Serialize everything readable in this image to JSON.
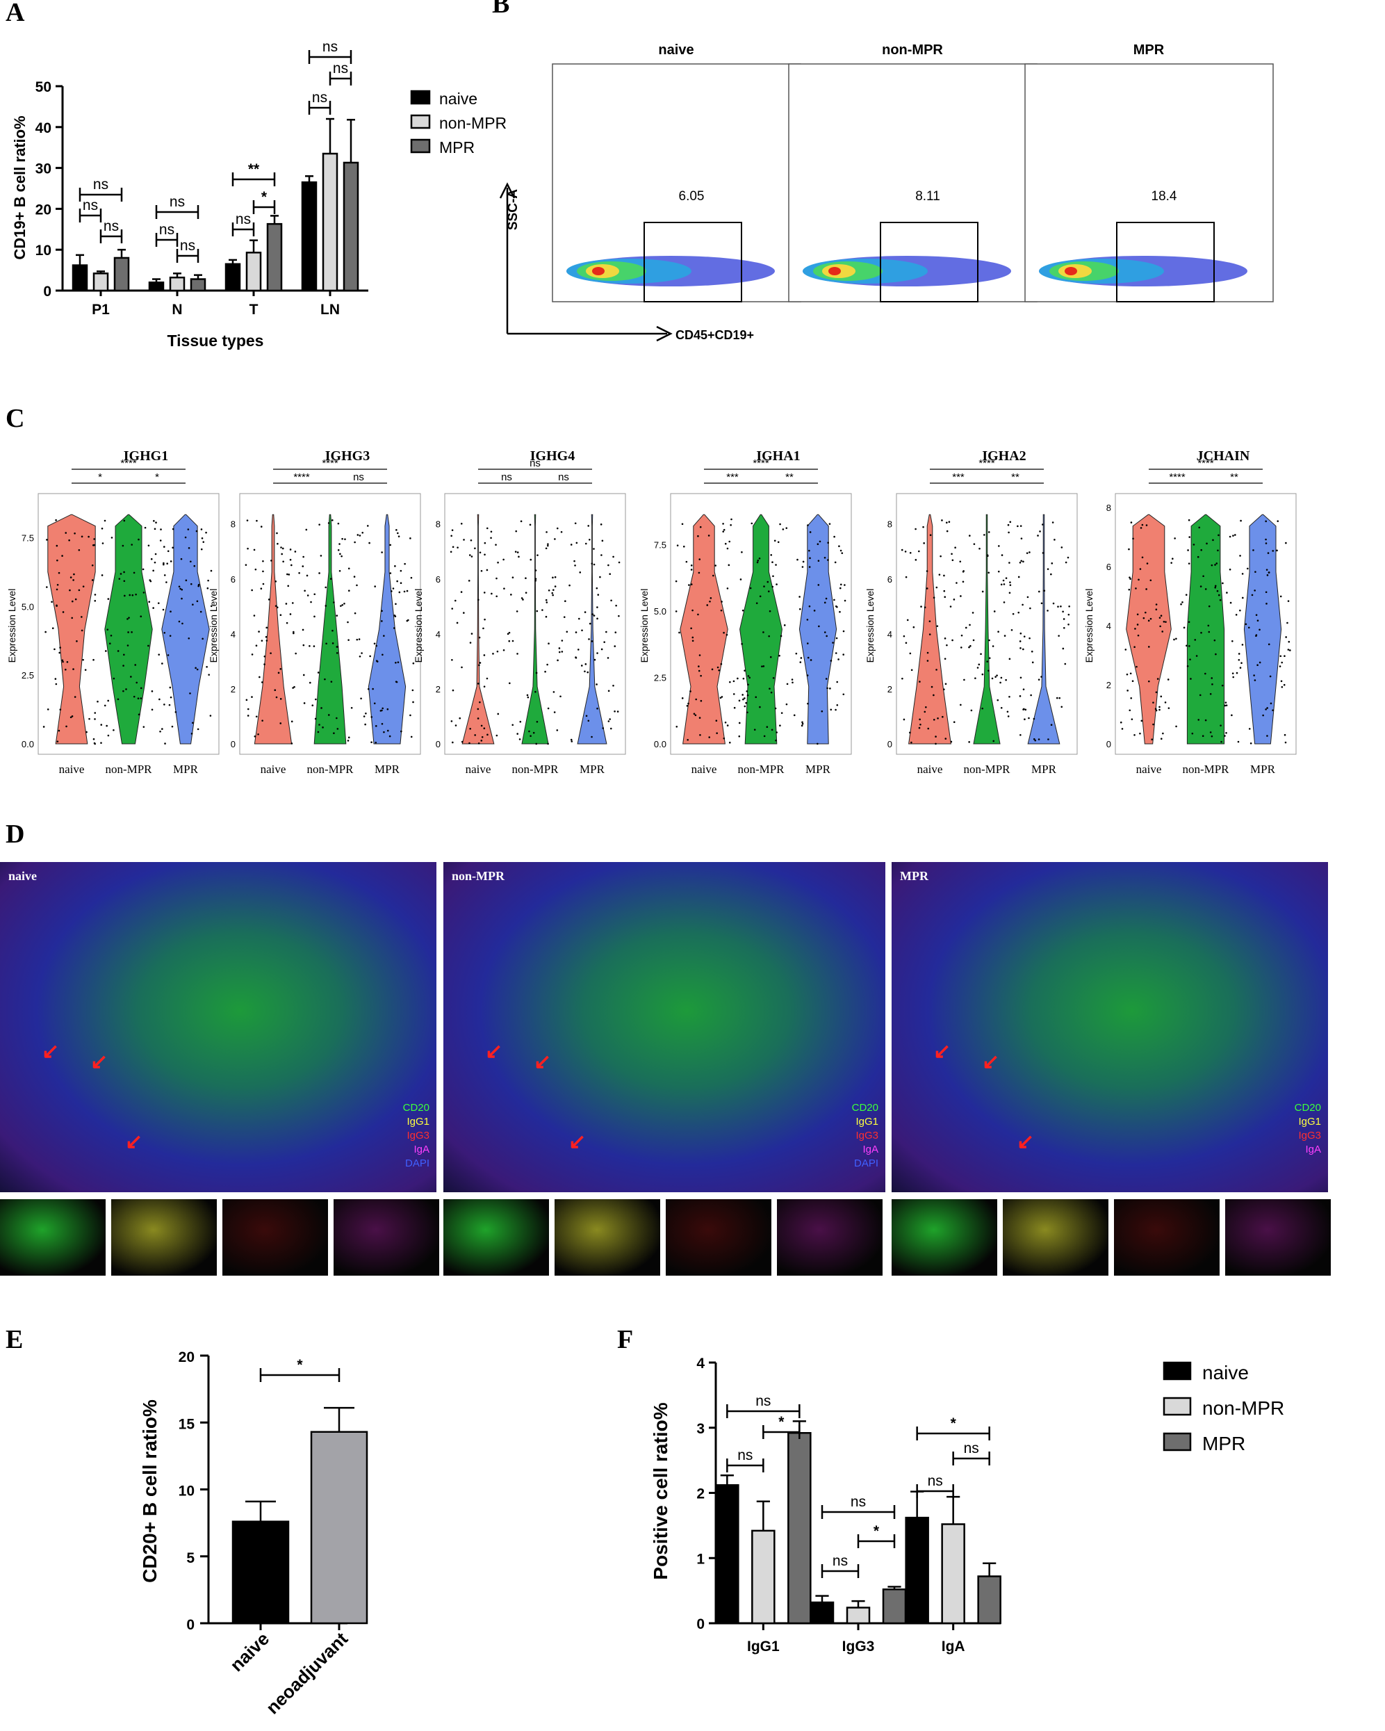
{
  "panels": {
    "A": "A",
    "B": "B",
    "C": "C",
    "D": "D",
    "E": "E",
    "F": "F"
  },
  "colors": {
    "naive": "#000000",
    "nonmpr": "#d9d9d9",
    "mpr": "#6e6e6e",
    "mpr_e": "#a3a3a8",
    "violin_naive": "#f08070",
    "violin_nonmpr": "#1faa3c",
    "violin_mpr": "#6c90ea"
  },
  "chart_data": [
    {
      "id": "A",
      "type": "bar",
      "ylabel": "CD19+ B cell ratio%",
      "xlabel": "Tissue types",
      "ylim": [
        0,
        50
      ],
      "yticks": [
        0,
        10,
        20,
        30,
        40,
        50
      ],
      "categories": [
        "P1",
        "N",
        "T",
        "LN"
      ],
      "series": [
        {
          "name": "naive",
          "values": [
            6.2,
            2.0,
            6.5,
            26.5
          ],
          "err": [
            2.5,
            0.8,
            1.0,
            1.5
          ]
        },
        {
          "name": "non-MPR",
          "values": [
            4.2,
            3.2,
            9.3,
            33.5
          ],
          "err": [
            0.5,
            1.0,
            3.0,
            8.5
          ]
        },
        {
          "name": "MPR",
          "values": [
            8.0,
            2.8,
            16.3,
            31.3
          ],
          "err": [
            2.0,
            1.0,
            2.0,
            10.5
          ]
        }
      ],
      "legend": [
        "naive",
        "non-MPR",
        "MPR"
      ],
      "annotations": [
        "ns",
        "ns",
        "ns",
        "ns",
        "ns",
        "ns",
        "**",
        "ns",
        "*",
        "ns",
        "ns",
        "ns"
      ]
    },
    {
      "id": "C",
      "type": "violin",
      "ylabel": "Expression Level",
      "groups": [
        "naive",
        "non-MPR",
        "MPR"
      ],
      "genes": [
        {
          "gene": "IGHG1",
          "yticks": [
            "0.0",
            "2.5",
            "5.0",
            "7.5"
          ],
          "ymax": 8.6,
          "tickvals": [
            0,
            2.5,
            5,
            7.5
          ],
          "sig": [
            "*",
            "*",
            "****"
          ]
        },
        {
          "gene": "IGHG3",
          "yticks": [
            "0",
            "2",
            "4",
            "6",
            "8"
          ],
          "ymax": 8.6,
          "tickvals": [
            0,
            2,
            4,
            6,
            8
          ],
          "sig": [
            "****",
            "ns",
            "****"
          ]
        },
        {
          "gene": "IGHG4",
          "yticks": [
            "0",
            "2",
            "4",
            "6",
            "8"
          ],
          "ymax": 8.6,
          "tickvals": [
            0,
            2,
            4,
            6,
            8
          ],
          "sig": [
            "ns",
            "ns",
            "ns"
          ]
        },
        {
          "gene": "IGHA1",
          "yticks": [
            "0.0",
            "2.5",
            "5.0",
            "7.5"
          ],
          "ymax": 8.9,
          "tickvals": [
            0,
            2.5,
            5,
            7.5
          ],
          "sig": [
            "***",
            "**",
            "****"
          ]
        },
        {
          "gene": "IGHA2",
          "yticks": [
            "0",
            "2",
            "4",
            "6",
            "8"
          ],
          "ymax": 8.6,
          "tickvals": [
            0,
            2,
            4,
            6,
            8
          ],
          "sig": [
            "***",
            "**",
            "****"
          ]
        },
        {
          "gene": "JCHAIN",
          "yticks": [
            "0",
            "2",
            "4",
            "6",
            "8"
          ],
          "ymax": 8.0,
          "tickvals": [
            0,
            2,
            4,
            6,
            8
          ],
          "sig": [
            "****",
            "**",
            "****"
          ]
        }
      ]
    },
    {
      "id": "E",
      "type": "bar",
      "ylabel": "CD20+ B cell ratio%",
      "categories": [
        "naive",
        "neoadjuvant"
      ],
      "values": [
        7.6,
        14.3
      ],
      "err": [
        1.5,
        1.8
      ],
      "ylim": [
        0,
        20
      ],
      "yticks": [
        0,
        5,
        10,
        15,
        20
      ],
      "annotation": "*"
    },
    {
      "id": "F",
      "type": "bar",
      "ylabel": "Positive cell ratio%",
      "categories": [
        "IgG1",
        "IgG3",
        "IgA"
      ],
      "series": [
        {
          "name": "naive",
          "values": [
            2.12,
            0.32,
            1.62
          ],
          "err": [
            0.15,
            0.1,
            0.4
          ]
        },
        {
          "name": "non-MPR",
          "values": [
            1.42,
            0.24,
            1.52
          ],
          "err": [
            0.45,
            0.1,
            0.42
          ]
        },
        {
          "name": "MPR",
          "values": [
            2.92,
            0.52,
            0.72
          ],
          "err": [
            0.18,
            0.04,
            0.2
          ]
        }
      ],
      "ylim": [
        0,
        4
      ],
      "yticks": [
        0,
        1,
        2,
        3,
        4
      ],
      "legend": [
        "naive",
        "non-MPR",
        "MPR"
      ],
      "annotations": [
        "ns",
        "*",
        "ns",
        "ns",
        "*",
        "ns",
        "*",
        "ns",
        "ns"
      ]
    }
  ],
  "flow": {
    "groups": [
      "naive",
      "non-MPR",
      "MPR"
    ],
    "values": [
      "6.05",
      "8.11",
      "18.4"
    ],
    "yaxis": "SSC-A",
    "xaxis": "CD45+CD19+"
  },
  "images": {
    "labels": [
      "naive",
      "non-MPR",
      "MPR"
    ],
    "markers": [
      "CD20",
      "IgG1",
      "IgG3",
      "IgA",
      "DAPI"
    ]
  }
}
